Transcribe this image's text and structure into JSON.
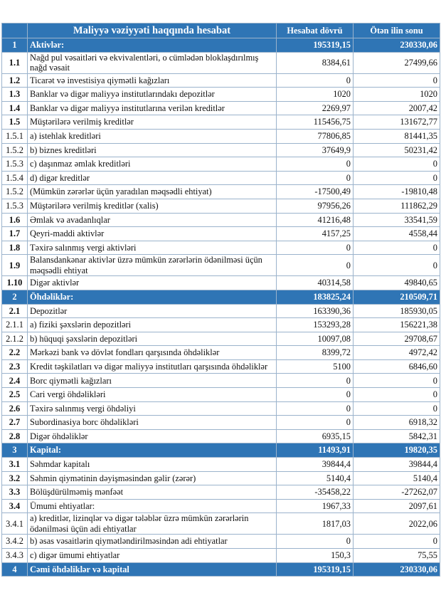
{
  "table": {
    "header": [
      "",
      "Maliyyə vəziyyəti haqqında hesabat",
      "Hesabat dövrü",
      "Ötən ilin sonu"
    ],
    "sections": [
      {
        "row": [
          "1",
          "Aktivlər:",
          "195319,15",
          "230330,06"
        ],
        "items": [
          [
            "1.1",
            "Nağd pul vəsaitləri və  ekvivalentləri, o cümlədən bloklaşdırılmış nağd vəsait",
            "8384,61",
            "27499,66"
          ],
          [
            "1.2",
            "Ticarət və investisiya qiymətli kağızları",
            "0",
            "0"
          ],
          [
            "1.3",
            "Banklar və digər maliyyə institutlarındakı depozitlər",
            "1020",
            "1020"
          ],
          [
            "1.4",
            "Banklar və digər maliyyə institutlarına verilən kreditlər",
            "2269,97",
            "2007,42"
          ],
          [
            "1.5",
            "Müştərilərə verilmiş kreditlər",
            "115456,75",
            "131672,77"
          ],
          [
            "1.5.1",
            "a) istehlak kreditləri",
            "77806,85",
            "81441,35"
          ],
          [
            "1.5.2",
            "b) biznes kreditləri",
            "37649,9",
            "50231,42"
          ],
          [
            "1.5.3",
            "c) daşınmaz əmlak kreditləri",
            "0",
            "0"
          ],
          [
            "1.5.4",
            "d) digər kreditlər",
            "0",
            "0"
          ],
          [
            "1.5.2",
            "(Mümkün zərərlər üçün yaradılan məqsədli ehtiyat)",
            "-17500,49",
            "-19810,48"
          ],
          [
            "1.5.3",
            "Müştərilərə verilmiş kreditlər (xalis)",
            "97956,26",
            "111862,29"
          ],
          [
            "1.6",
            "Əmlak və avadanlıqlar",
            "41216,48",
            "33541,59"
          ],
          [
            "1.7",
            "Qeyri-maddi aktivlər",
            "4157,25",
            "4558,44"
          ],
          [
            "1.8",
            "Təxirə salınmış vergi aktivləri",
            "0",
            "0"
          ],
          [
            "1.9",
            "Balansdankənar aktivlər üzrə mümkün zərərlərin ödənilməsi üçün məqsədli ehtiyat",
            "0",
            "0"
          ],
          [
            "1.10",
            "Digər aktivlər",
            "40314,58",
            "49840,65"
          ]
        ]
      },
      {
        "row": [
          "2",
          "Öhdəliklər:",
          "183825,24",
          "210509,71"
        ],
        "items": [
          [
            "2.1",
            "Depozitlər",
            "163390,36",
            "185930,05"
          ],
          [
            "2.1.1",
            "a) fiziki şəxslərin depozitləri",
            "153293,28",
            "156221,38"
          ],
          [
            "2.1.2",
            "b) hüquqi şəxslərin depozitləri",
            "10097,08",
            "29708,67"
          ],
          [
            "2.2",
            "Mərkəzi bank və dövlət fondları qarşısında öhdəliklər",
            "8399,72",
            "4972,42"
          ],
          [
            "2.3",
            "Kredit təşkilatları və digər maliyyə institutları qarşısında öhdəliklər",
            "5100",
            "6846,60"
          ],
          [
            "2.4",
            "Borc qiymətli kağızları",
            "0",
            "0"
          ],
          [
            "2.5",
            "Cari vergi öhdəlikləri",
            "0",
            "0"
          ],
          [
            "2.6",
            "Təxirə salınmış vergi öhdəliyi",
            "0",
            "0"
          ],
          [
            "2.7",
            "Subordinasiya borc öhdəlikləri",
            "0",
            "6918,32"
          ],
          [
            "2.8",
            "Digər öhdəliklər",
            "6935,15",
            "5842,31"
          ]
        ]
      },
      {
        "row": [
          "3",
          "Kapital:",
          "11493,91",
          "19820,35"
        ],
        "items": [
          [
            "3.1",
            "Səhmdar kapitalı",
            "39844,4",
            "39844,4"
          ],
          [
            "3.2",
            "Səhmin qiymətinin dəyişməsindən gəlir (zərər)",
            "5140,4",
            "5140,4"
          ],
          [
            "3.3",
            "Bölüşdürülməmiş mənfəət",
            "-35458,22",
            "-27262,07"
          ],
          [
            "3.4",
            "Ümumi ehtiyatlar:",
            "1967,33",
            "2097,61"
          ],
          [
            "3.4.1",
            "a) kreditlər, lizinqlər və digər tələblər üzrə mümkün zərərlərin ödənilməsi üçün adi ehtiyatlar",
            "1817,03",
            "2022,06"
          ],
          [
            "3.4.2",
            "b) əsas vəsaitlərin qiymətləndirilməsindən adi ehtiyatlar",
            "0",
            "0"
          ],
          [
            "3.4.3",
            "c) digər ümumi ehtiyatlar",
            "150,3",
            "75,55"
          ]
        ]
      },
      {
        "row": [
          "4",
          "Cəmi öhdəliklər və kapital",
          "195319,15",
          "230330,06"
        ],
        "items": []
      }
    ]
  }
}
